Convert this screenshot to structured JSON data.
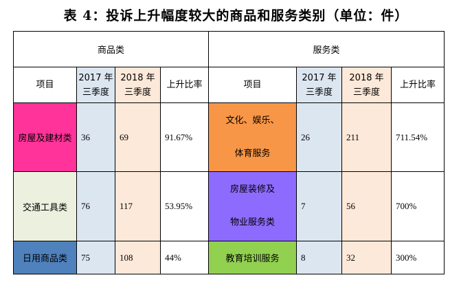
{
  "title": "表 4：投诉上升幅度较大的商品和服务类别（单位：件）",
  "goods": {
    "header": "商品类",
    "col_item": "项目",
    "col_2017": [
      "2017 年",
      "三季度"
    ],
    "col_2018": [
      "2018 年",
      "三季度"
    ],
    "col_rate": "上升比率",
    "rows": [
      {
        "item": "房屋及建材类",
        "v2017": "36",
        "v2018": "69",
        "rate": "91.67%",
        "color": "#ff3399"
      },
      {
        "item": "交通工具类",
        "v2017": "76",
        "v2018": "117",
        "rate": "53.95%",
        "color": "#ebf1de"
      },
      {
        "item": "日用商品类",
        "v2017": "75",
        "v2018": "108",
        "rate": "44%",
        "color": "#4f81bd"
      }
    ]
  },
  "services": {
    "header": "服务类",
    "col_item": "项目",
    "col_2017": [
      "2017 年",
      "三季度"
    ],
    "col_2018": [
      "2018 年",
      "三季度"
    ],
    "col_rate": "上升比率",
    "rows": [
      {
        "item": [
          "文化、娱乐、",
          "体育服务"
        ],
        "v2017": "26",
        "v2018": "211",
        "rate": "711.54%",
        "color": "#f79646"
      },
      {
        "item": [
          "房屋装修及",
          "物业服务类"
        ],
        "v2017": "7",
        "v2018": "56",
        "rate": "700%",
        "color": "#8e6bff"
      },
      {
        "item": [
          "教育培训服务"
        ],
        "v2017": "8",
        "v2018": "32",
        "rate": "300%",
        "color": "#92d050"
      }
    ]
  }
}
